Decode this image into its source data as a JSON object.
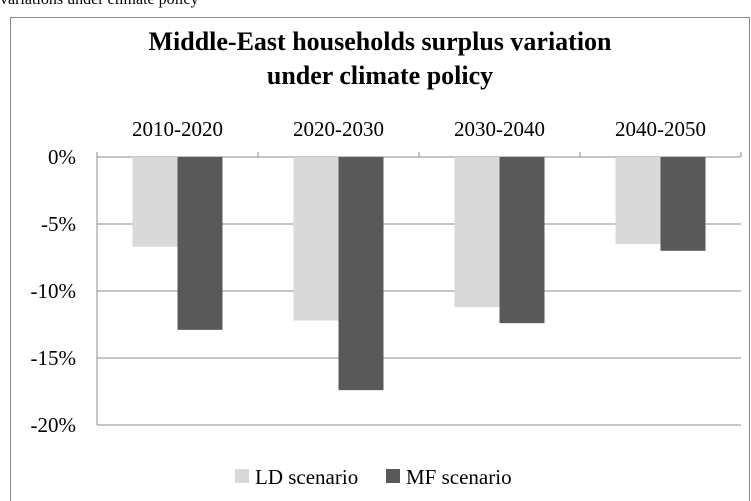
{
  "caption": "variations under climate policy",
  "chart_data": {
    "type": "bar",
    "title_lines": [
      "Middle-East households surplus variation",
      "under climate policy"
    ],
    "categories": [
      "2010-2020",
      "2020-2030",
      "2030-2040",
      "2040-2050"
    ],
    "series": [
      {
        "name": "LD scenario",
        "color": "#d9d9d9",
        "values": [
          -6.7,
          -12.2,
          -11.2,
          -6.5
        ]
      },
      {
        "name": "MF scenario",
        "color": "#595959",
        "values": [
          -12.9,
          -17.4,
          -12.4,
          -7.0
        ]
      }
    ],
    "y_ticks": [
      0,
      -5,
      -10,
      -15,
      -20
    ],
    "y_tick_labels": [
      "0%",
      "-5%",
      "-10%",
      "-15%",
      "-20%"
    ],
    "ylim": [
      -20,
      0
    ],
    "grid": true,
    "legend_position": "bottom",
    "category_axis_position": "top"
  }
}
